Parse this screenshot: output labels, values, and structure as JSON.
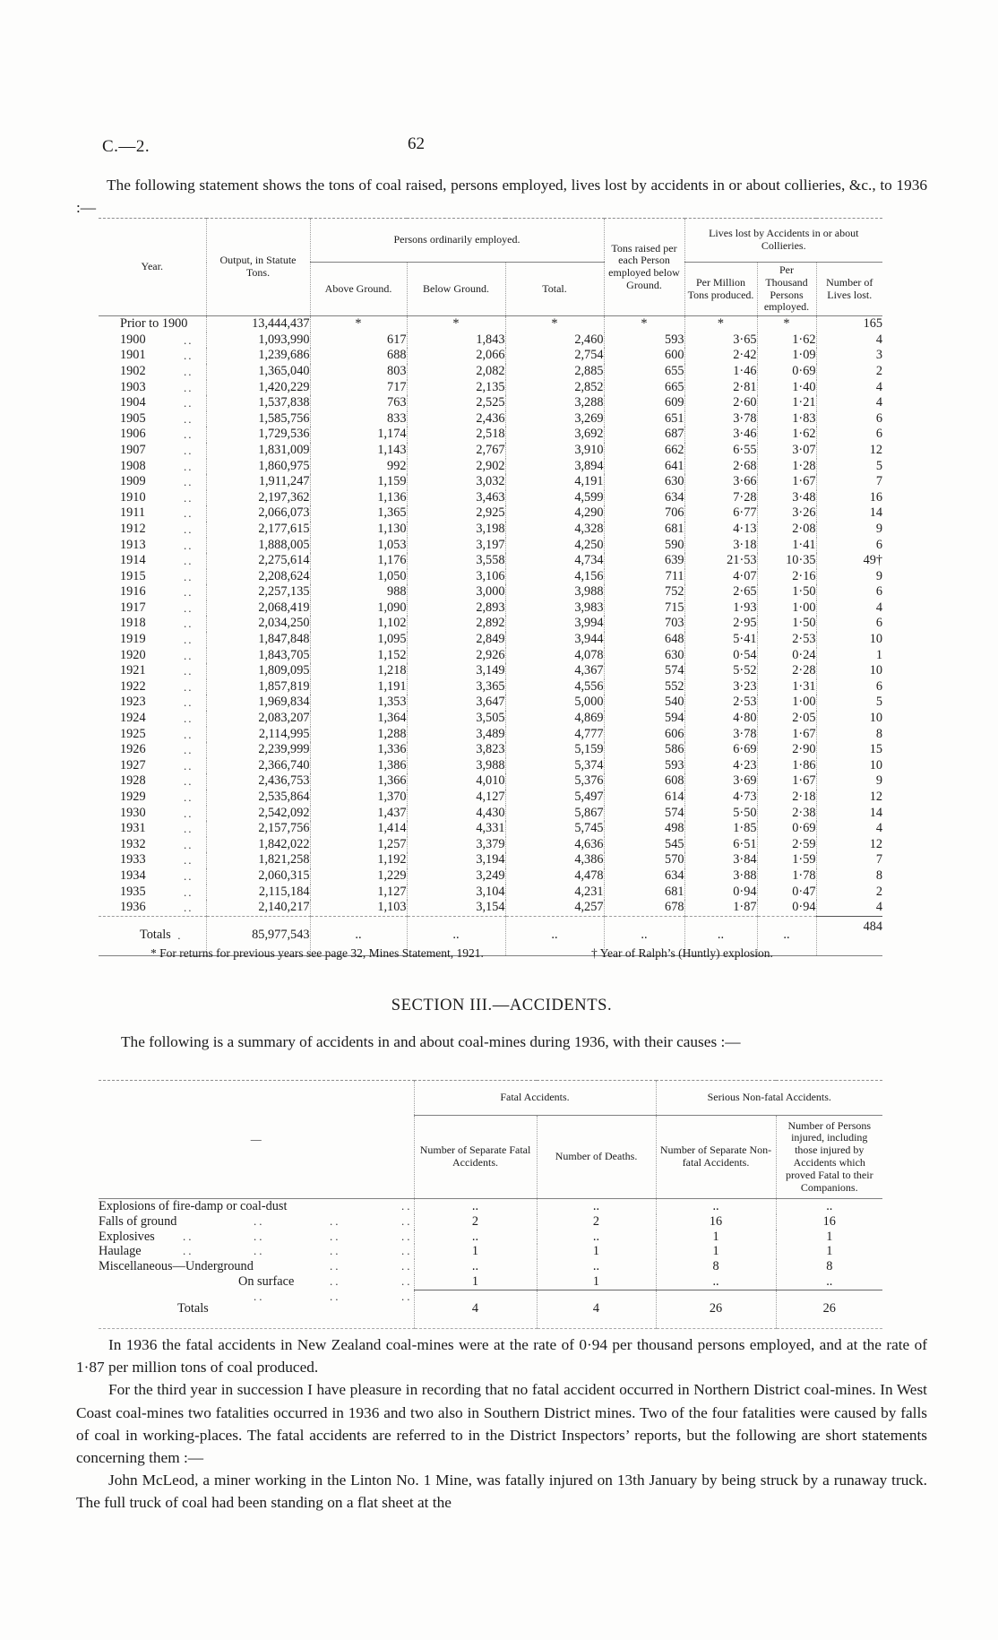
{
  "page": {
    "doc_ref": "C.—2.",
    "page_number": "62",
    "intro": "The following statement shows the tons of coal raised, persons employed, lives lost by accidents in or about collieries, &c., to 1936 :—"
  },
  "main_table": {
    "col_year": "Year.",
    "col_output": "Output, in Statute Tons.",
    "group_persons": "Persons ordinarily employed.",
    "col_above": "Above Ground.",
    "col_below": "Below Ground.",
    "col_total": "Total.",
    "col_tons_raised": "Tons raised per each Person employed below Ground.",
    "group_lives": "Lives lost by Accidents in or about Collieries.",
    "col_per_million": "Per Million Tons produced.",
    "col_per_thousand": "Per Thousand Persons employed.",
    "col_lives_lost": "Number of Lives lost.",
    "rows": [
      [
        "Prior to 1900",
        "13,444,437",
        "*",
        "*",
        "*",
        "*",
        "*",
        "*",
        "165"
      ],
      [
        "1900",
        "1,093,990",
        "617",
        "1,843",
        "2,460",
        "593",
        "3·65",
        "1·62",
        "4"
      ],
      [
        "1901",
        "1,239,686",
        "688",
        "2,066",
        "2,754",
        "600",
        "2·42",
        "1·09",
        "3"
      ],
      [
        "1902",
        "1,365,040",
        "803",
        "2,082",
        "2,885",
        "655",
        "1·46",
        "0·69",
        "2"
      ],
      [
        "1903",
        "1,420,229",
        "717",
        "2,135",
        "2,852",
        "665",
        "2·81",
        "1·40",
        "4"
      ],
      [
        "1904",
        "1,537,838",
        "763",
        "2,525",
        "3,288",
        "609",
        "2·60",
        "1·21",
        "4"
      ],
      [
        "1905",
        "1,585,756",
        "833",
        "2,436",
        "3,269",
        "651",
        "3·78",
        "1·83",
        "6"
      ],
      [
        "1906",
        "1,729,536",
        "1,174",
        "2,518",
        "3,692",
        "687",
        "3·46",
        "1·62",
        "6"
      ],
      [
        "1907",
        "1,831,009",
        "1,143",
        "2,767",
        "3,910",
        "662",
        "6·55",
        "3·07",
        "12"
      ],
      [
        "1908",
        "1,860,975",
        "992",
        "2,902",
        "3,894",
        "641",
        "2·68",
        "1·28",
        "5"
      ],
      [
        "1909",
        "1,911,247",
        "1,159",
        "3,032",
        "4,191",
        "630",
        "3·66",
        "1·67",
        "7"
      ],
      [
        "1910",
        "2,197,362",
        "1,136",
        "3,463",
        "4,599",
        "634",
        "7·28",
        "3·48",
        "16"
      ],
      [
        "1911",
        "2,066,073",
        "1,365",
        "2,925",
        "4,290",
        "706",
        "6·77",
        "3·26",
        "14"
      ],
      [
        "1912",
        "2,177,615",
        "1,130",
        "3,198",
        "4,328",
        "681",
        "4·13",
        "2·08",
        "9"
      ],
      [
        "1913",
        "1,888,005",
        "1,053",
        "3,197",
        "4,250",
        "590",
        "3·18",
        "1·41",
        "6"
      ],
      [
        "1914",
        "2,275,614",
        "1,176",
        "3,558",
        "4,734",
        "639",
        "21·53",
        "10·35",
        "49†"
      ],
      [
        "1915",
        "2,208,624",
        "1,050",
        "3,106",
        "4,156",
        "711",
        "4·07",
        "2·16",
        "9"
      ],
      [
        "1916",
        "2,257,135",
        "988",
        "3,000",
        "3,988",
        "752",
        "2·65",
        "1·50",
        "6"
      ],
      [
        "1917",
        "2,068,419",
        "1,090",
        "2,893",
        "3,983",
        "715",
        "1·93",
        "1·00",
        "4"
      ],
      [
        "1918",
        "2,034,250",
        "1,102",
        "2,892",
        "3,994",
        "703",
        "2·95",
        "1·50",
        "6"
      ],
      [
        "1919",
        "1,847,848",
        "1,095",
        "2,849",
        "3,944",
        "648",
        "5·41",
        "2·53",
        "10"
      ],
      [
        "1920",
        "1,843,705",
        "1,152",
        "2,926",
        "4,078",
        "630",
        "0·54",
        "0·24",
        "1"
      ],
      [
        "1921",
        "1,809,095",
        "1,218",
        "3,149",
        "4,367",
        "574",
        "5·52",
        "2·28",
        "10"
      ],
      [
        "1922",
        "1,857,819",
        "1,191",
        "3,365",
        "4,556",
        "552",
        "3·23",
        "1·31",
        "6"
      ],
      [
        "1923",
        "1,969,834",
        "1,353",
        "3,647",
        "5,000",
        "540",
        "2·53",
        "1·00",
        "5"
      ],
      [
        "1924",
        "2,083,207",
        "1,364",
        "3,505",
        "4,869",
        "594",
        "4·80",
        "2·05",
        "10"
      ],
      [
        "1925",
        "2,114,995",
        "1,288",
        "3,489",
        "4,777",
        "606",
        "3·78",
        "1·67",
        "8"
      ],
      [
        "1926",
        "2,239,999",
        "1,336",
        "3,823",
        "5,159",
        "586",
        "6·69",
        "2·90",
        "15"
      ],
      [
        "1927",
        "2,366,740",
        "1,386",
        "3,988",
        "5,374",
        "593",
        "4·23",
        "1·86",
        "10"
      ],
      [
        "1928",
        "2,436,753",
        "1,366",
        "4,010",
        "5,376",
        "608",
        "3·69",
        "1·67",
        "9"
      ],
      [
        "1929",
        "2,535,864",
        "1,370",
        "4,127",
        "5,497",
        "614",
        "4·73",
        "2·18",
        "12"
      ],
      [
        "1930",
        "2,542,092",
        "1,437",
        "4,430",
        "5,867",
        "574",
        "5·50",
        "2·38",
        "14"
      ],
      [
        "1931",
        "2,157,756",
        "1,414",
        "4,331",
        "5,745",
        "498",
        "1·85",
        "0·69",
        "4"
      ],
      [
        "1932",
        "1,842,022",
        "1,257",
        "3,379",
        "4,636",
        "545",
        "6·51",
        "2·59",
        "12"
      ],
      [
        "1933",
        "1,821,258",
        "1,192",
        "3,194",
        "4,386",
        "570",
        "3·84",
        "1·59",
        "7"
      ],
      [
        "1934",
        "2,060,315",
        "1,229",
        "3,249",
        "4,478",
        "634",
        "3·88",
        "1·78",
        "8"
      ],
      [
        "1935",
        "2,115,184",
        "1,127",
        "3,104",
        "4,231",
        "681",
        "0·94",
        "0·47",
        "2"
      ],
      [
        "1936",
        "2,140,217",
        "1,103",
        "3,154",
        "4,257",
        "678",
        "1·87",
        "0·94",
        "4"
      ]
    ],
    "totals": {
      "label": "Totals",
      "leader": ".",
      "output": "85,977,543",
      "cells": [
        "..",
        "..",
        "..",
        "..",
        "..",
        ".."
      ],
      "lives": "484"
    },
    "footnote_left": "* For returns for previous years see page 32, Mines Statement, 1921.",
    "footnote_right": "† Year of Ralph’s (Huntly) explosion."
  },
  "section": {
    "title": "SECTION III.—ACCIDENTS.",
    "intro": "The following is a summary of accidents in and about coal-mines during 1936, with their causes :—"
  },
  "accidents_table": {
    "col_blank": "—",
    "group_fatal": "Fatal Accidents.",
    "group_nonfatal": "Serious Non-fatal Accidents.",
    "col_fatal_accidents": "Number of Separate Fatal Accidents.",
    "col_deaths": "Number of Deaths.",
    "col_nonfatal_accidents": "Number of Separate Non-fatal Accidents.",
    "col_persons_injured": "Number of Persons injured, including those injured by Accidents which proved Fatal to their Companions.",
    "rows": [
      {
        "label": "Explosions of fire-damp or coal-dust",
        "leaders": 1,
        "indent": 0,
        "cells": [
          "..",
          "..",
          "..",
          ".."
        ]
      },
      {
        "label": "Falls of ground",
        "leaders": 3,
        "indent": 0,
        "cells": [
          "2",
          "2",
          "16",
          "16"
        ]
      },
      {
        "label": "Explosives",
        "leaders": 4,
        "indent": 0,
        "cells": [
          "..",
          "..",
          "1",
          "1"
        ]
      },
      {
        "label": "Haulage",
        "leaders": 4,
        "indent": 0,
        "cells": [
          "1",
          "1",
          "1",
          "1"
        ]
      },
      {
        "label": "Miscellaneous—Underground",
        "leaders": 2,
        "indent": 0,
        "cells": [
          "..",
          "..",
          "8",
          "8"
        ]
      },
      {
        "label": "On surface",
        "leaders": 2,
        "indent": 1,
        "cells": [
          "1",
          "1",
          "..",
          ".."
        ]
      }
    ],
    "totals": {
      "label": "Totals",
      "leaders": 3,
      "cells": [
        "4",
        "4",
        "26",
        "26"
      ]
    }
  },
  "paragraphs": [
    "In 1936 the fatal accidents in New Zealand coal-mines were at the rate of 0·94 per thousand persons employed, and at the rate of 1·87 per million tons of coal produced.",
    "For the third year in succession I have pleasure in recording that no fatal accident occurred in Northern District coal-mines.  In West Coast coal-mines two fatalities occurred in 1936 and two also in Southern District mines.  Two of the four fatalities were caused by falls of coal in working-places.  The fatal accidents are referred to in the District Inspectors’ reports, but the following are short statements concerning them :—",
    "John McLeod, a miner working in the Linton No. 1 Mine, was fatally injured on 13th January by being struck by a runaway truck.  The full truck of coal had been standing on a flat sheet at the"
  ]
}
